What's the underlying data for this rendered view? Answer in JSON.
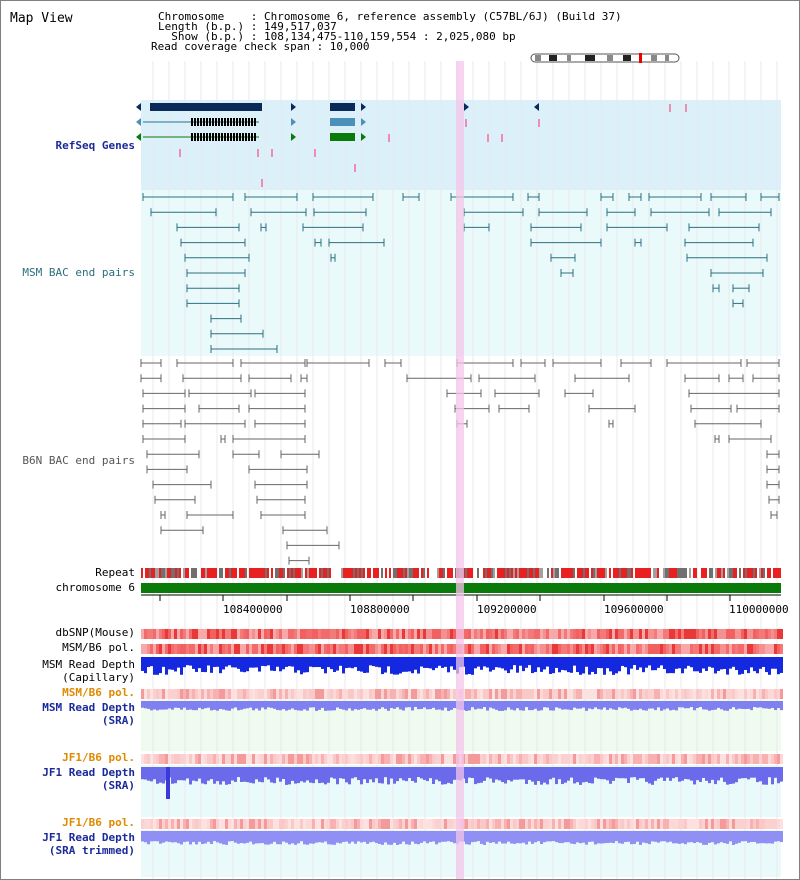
{
  "header": {
    "title": "Map View",
    "line1": "Chromosome    : Chromosome 6, reference assembly (C57BL/6J) (Build 37)",
    "line2": "Length (b.p.) : 149,517,037",
    "line3": "  Show (b.p.) : 108,134,475-110,159,554 : 2,025,080 bp",
    "line4": "Read coverage check span : 10,000"
  },
  "tracks": {
    "refseq": "RefSeq Genes",
    "msm_bac": "MSM BAC end pairs",
    "b6n_bac": "B6N BAC end pairs",
    "repeat": "Repeat",
    "chromosome": "chromosome 6",
    "dbsnp": "dbSNP(Mouse)",
    "msm_b6_pol": "MSM/B6 pol.",
    "msm_read_cap_1": "MSM Read Depth",
    "msm_read_cap_2": "(Capillary)",
    "msm_b6_pol2": "MSM/B6 pol.",
    "msm_read_sra_1": "MSM Read Depth",
    "msm_read_sra_2": "(SRA)",
    "jf1_b6_pol": "JF1/B6 pol.",
    "jf1_read_sra_1": "JF1 Read Depth",
    "jf1_read_sra_2": "(SRA)",
    "jf1_b6_pol2": "JF1/B6 pol.",
    "jf1_read_trim_1": "JF1 Read Depth",
    "jf1_read_trim_2": "(SRA trimmed)"
  },
  "axis": {
    "ticks": [
      "108400000",
      "108800000",
      "109200000",
      "109600000",
      "110000000"
    ]
  },
  "colors": {
    "navy": "#0a2a5a",
    "teal": "#2a7080",
    "green": "#0a7a0a",
    "highlight": "#f4c6ea"
  }
}
